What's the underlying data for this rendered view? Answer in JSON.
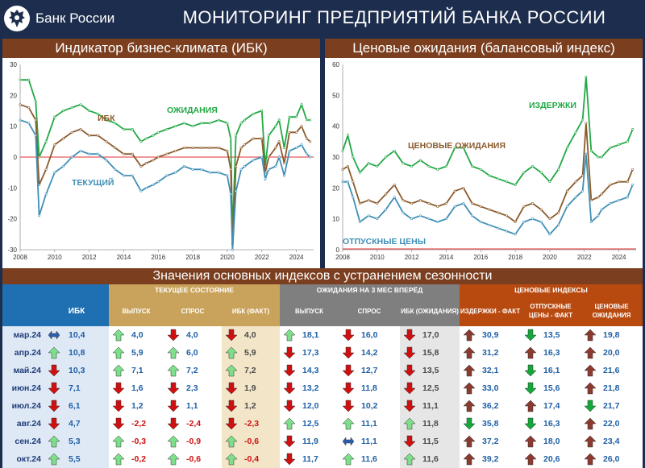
{
  "header": {
    "bank_name": "Банк России",
    "title": "МОНИТОРИНГ ПРЕДПРИЯТИЙ БАНКА РОССИИ"
  },
  "charts_titles": {
    "left": "Индикатор бизнес-климата (ИБК)",
    "right": "Ценовые ожидания (балансовый индекс)"
  },
  "chart_data": [
    {
      "type": "line",
      "title": "Индикатор бизнес-климата (ИБК)",
      "x_ticks": [
        "2008",
        "2010",
        "2012",
        "2014",
        "2016",
        "2018",
        "2020",
        "2022",
        "2024"
      ],
      "ylim": [
        -30,
        30
      ],
      "y_ticks": [
        "30",
        "20",
        "10",
        "0",
        "-10",
        "-20",
        "-30"
      ],
      "series": [
        {
          "name": "ОЖИДАНИЯ",
          "color": "#22a845",
          "x": [
            2008,
            2008.5,
            2008.9,
            2009.1,
            2009.5,
            2010,
            2010.5,
            2011,
            2011.5,
            2012,
            2012.5,
            2013,
            2013.5,
            2014,
            2014.5,
            2015,
            2015.3,
            2015.7,
            2016,
            2016.5,
            2017,
            2017.5,
            2018,
            2018.5,
            2019,
            2019.5,
            2020,
            2020.2,
            2020.3,
            2020.5,
            2020.8,
            2021,
            2021.5,
            2022,
            2022.2,
            2022.4,
            2022.8,
            2023,
            2023.3,
            2023.6,
            2024,
            2024.3,
            2024.6,
            2024.8
          ],
          "values": [
            25,
            25,
            18,
            0,
            5,
            13,
            15,
            16,
            17,
            15,
            14,
            12,
            11,
            9,
            9,
            5,
            6,
            7,
            8,
            9,
            10,
            11,
            10,
            11,
            11,
            12,
            11,
            6,
            -25,
            7,
            11,
            12,
            14,
            15,
            -3,
            7,
            10,
            12,
            3,
            13,
            13,
            17,
            12,
            12
          ]
        },
        {
          "name": "ИБК",
          "color": "#8b5a2b",
          "x": [
            2008,
            2008.5,
            2008.9,
            2009.1,
            2009.5,
            2010,
            2010.5,
            2011,
            2011.5,
            2012,
            2012.5,
            2013,
            2013.5,
            2014,
            2014.5,
            2015,
            2015.3,
            2015.7,
            2016,
            2016.5,
            2017,
            2017.5,
            2018,
            2018.5,
            2019,
            2019.5,
            2020,
            2020.2,
            2020.3,
            2020.5,
            2020.8,
            2021,
            2021.5,
            2022,
            2022.2,
            2022.4,
            2022.8,
            2023,
            2023.3,
            2023.6,
            2024,
            2024.3,
            2024.6,
            2024.8
          ],
          "values": [
            17,
            16,
            12,
            -9,
            -4,
            4,
            6,
            8,
            9,
            7,
            7,
            5,
            3,
            1,
            1,
            -3,
            -2,
            -1,
            0,
            1,
            2,
            3,
            3,
            3,
            3,
            3,
            2,
            -4,
            -28,
            -3,
            3,
            4,
            6,
            6,
            -5,
            0,
            3,
            5,
            -2,
            8,
            8,
            10,
            6,
            5
          ]
        },
        {
          "name": "ТЕКУЩИЙ",
          "color": "#3f8fb5",
          "x": [
            2008,
            2008.5,
            2008.9,
            2009.1,
            2009.5,
            2010,
            2010.5,
            2011,
            2011.5,
            2012,
            2012.5,
            2013,
            2013.5,
            2014,
            2014.5,
            2015,
            2015.3,
            2015.7,
            2016,
            2016.5,
            2017,
            2017.5,
            2018,
            2018.5,
            2019,
            2019.5,
            2020,
            2020.2,
            2020.3,
            2020.5,
            2020.8,
            2021,
            2021.5,
            2022,
            2022.2,
            2022.4,
            2022.8,
            2023,
            2023.3,
            2023.6,
            2024,
            2024.3,
            2024.6,
            2024.8
          ],
          "values": [
            12,
            11,
            7,
            -19,
            -12,
            -5,
            -3,
            0,
            2,
            1,
            1,
            -1,
            -4,
            -6,
            -6,
            -11,
            -10,
            -9,
            -8,
            -6,
            -5,
            -3,
            -4,
            -4,
            -5,
            -5,
            -6,
            -12,
            -30,
            -11,
            -4,
            -3,
            -1,
            0,
            -7,
            -4,
            -3,
            0,
            -6,
            2,
            3,
            4,
            1,
            0
          ]
        }
      ],
      "annotations": [
        "ОЖИДАНИЯ",
        "ИБК",
        "ТЕКУЩИЙ"
      ]
    },
    {
      "type": "line",
      "title": "Ценовые ожидания (балансовый индекс)",
      "x_ticks": [
        "2008",
        "2010",
        "2012",
        "2014",
        "2016",
        "2018",
        "2020",
        "2022",
        "2024"
      ],
      "ylim": [
        0,
        60
      ],
      "y_ticks": [
        "60",
        "50",
        "40",
        "30",
        "20",
        "10",
        "0"
      ],
      "series": [
        {
          "name": "ИЗДЕРЖКИ",
          "color": "#22a845",
          "x": [
            2008,
            2008.3,
            2008.6,
            2009,
            2009.5,
            2010,
            2010.5,
            2011,
            2011.5,
            2012,
            2012.5,
            2013,
            2013.5,
            2014,
            2014.5,
            2015,
            2015.5,
            2016,
            2016.5,
            2017,
            2017.5,
            2018,
            2018.5,
            2019,
            2019.5,
            2020,
            2020.5,
            2021,
            2021.5,
            2021.9,
            2022.1,
            2022.4,
            2022.8,
            2023,
            2023.5,
            2024,
            2024.5,
            2024.8
          ],
          "values": [
            32,
            37,
            30,
            25,
            28,
            27,
            30,
            32,
            28,
            27,
            29,
            27,
            26,
            27,
            33,
            33,
            27,
            26,
            24,
            23,
            22,
            21,
            25,
            27,
            25,
            22,
            26,
            33,
            38,
            42,
            56,
            32,
            30,
            30,
            33,
            34,
            35,
            39
          ]
        },
        {
          "name": "ЦЕНОВЫЕ ОЖИДАНИЯ",
          "color": "#8b5a2b",
          "x": [
            2008,
            2008.3,
            2008.6,
            2009,
            2009.5,
            2010,
            2010.5,
            2011,
            2011.5,
            2012,
            2012.5,
            2013,
            2013.5,
            2014,
            2014.5,
            2015,
            2015.5,
            2016,
            2016.5,
            2017,
            2017.5,
            2018,
            2018.5,
            2019,
            2019.5,
            2020,
            2020.5,
            2021,
            2021.5,
            2021.9,
            2022.1,
            2022.4,
            2022.8,
            2023,
            2023.5,
            2024,
            2024.5,
            2024.8
          ],
          "values": [
            26,
            27,
            22,
            15,
            16,
            15,
            18,
            21,
            16,
            15,
            16,
            15,
            14,
            15,
            19,
            20,
            15,
            14,
            13,
            12,
            11,
            9,
            14,
            15,
            13,
            10,
            12,
            19,
            22,
            24,
            41,
            16,
            17,
            18,
            21,
            22,
            22,
            26
          ]
        },
        {
          "name": "ОТПУСКНЫЕ ЦЕНЫ",
          "color": "#3f8fb5",
          "x": [
            2008,
            2008.3,
            2008.6,
            2009,
            2009.5,
            2010,
            2010.5,
            2011,
            2011.5,
            2012,
            2012.5,
            2013,
            2013.5,
            2014,
            2014.5,
            2015,
            2015.5,
            2016,
            2016.5,
            2017,
            2017.5,
            2018,
            2018.5,
            2019,
            2019.5,
            2020,
            2020.5,
            2021,
            2021.5,
            2021.9,
            2022.1,
            2022.4,
            2022.8,
            2023,
            2023.5,
            2024,
            2024.5,
            2024.8
          ],
          "values": [
            22,
            22,
            17,
            9,
            11,
            10,
            13,
            17,
            12,
            10,
            11,
            10,
            9,
            10,
            14,
            15,
            11,
            9,
            8,
            7,
            6,
            5,
            9,
            10,
            9,
            5,
            8,
            14,
            17,
            19,
            31,
            9,
            11,
            13,
            15,
            16,
            17,
            21
          ]
        }
      ],
      "annotations": [
        "ИЗДЕРЖКИ",
        "ЦЕНОВЫЕ ОЖИДАНИЯ",
        "ОТПУСКНЫЕ ЦЕНЫ"
      ]
    },
    {
      "type": "table",
      "title": "Значения основных индексов с устранением сезонности",
      "group_headers": [
        "ТЕКУЩЕЕ СОСТОЯНИЕ",
        "ОЖИДАНИЯ НА 3 МЕС ВПЕРЁД",
        "ЦЕНОВЫЕ ИНДЕКСЫ"
      ],
      "columns": [
        "ИБК",
        "ВЫПУСК",
        "СПРОС",
        "ИБК (ФАКТ)",
        "ВЫПУСК",
        "СПРОС",
        "ИБК (ОЖИДАНИЯ)",
        "ИЗДЕРЖКИ - ФАКТ",
        "ОТПУСКНЫЕ ЦЕНЫ - ФАКТ",
        "ЦЕНОВЫЕ ОЖИДАНИЯ"
      ],
      "rows": [
        {
          "label": "мар.24",
          "values": [
            "10,4",
            "4,0",
            "4,0",
            "4,0",
            "18,1",
            "16,0",
            "17,0",
            "30,9",
            "13,5",
            "19,8"
          ],
          "dirs": [
            "lr",
            "up",
            "down",
            "down",
            "up",
            "down",
            "down",
            "up",
            "down",
            "up"
          ]
        },
        {
          "label": "апр.24",
          "values": [
            "10,8",
            "5,9",
            "6,0",
            "5,9",
            "17,3",
            "14,2",
            "15,8",
            "31,2",
            "16,3",
            "20,0"
          ],
          "dirs": [
            "up",
            "up",
            "up",
            "up",
            "down",
            "down",
            "down",
            "up",
            "up",
            "up"
          ]
        },
        {
          "label": "май.24",
          "values": [
            "10,3",
            "7,1",
            "7,2",
            "7,2",
            "14,3",
            "12,7",
            "13,5",
            "32,1",
            "16,1",
            "21,6"
          ],
          "dirs": [
            "down",
            "up",
            "up",
            "up",
            "down",
            "down",
            "down",
            "up",
            "down",
            "up"
          ]
        },
        {
          "label": "июн.24",
          "values": [
            "7,1",
            "1,6",
            "2,3",
            "1,9",
            "13,2",
            "11,8",
            "12,5",
            "33,0",
            "15,6",
            "21,8"
          ],
          "dirs": [
            "down",
            "down",
            "down",
            "down",
            "down",
            "down",
            "down",
            "up",
            "down",
            "up"
          ]
        },
        {
          "label": "июл.24",
          "values": [
            "6,1",
            "1,2",
            "1,1",
            "1,2",
            "12,0",
            "10,2",
            "11,1",
            "36,2",
            "17,4",
            "21,7"
          ],
          "dirs": [
            "down",
            "down",
            "down",
            "down",
            "down",
            "down",
            "down",
            "up",
            "up",
            "down"
          ]
        },
        {
          "label": "авг.24",
          "values": [
            "4,7",
            "-2,2",
            "-2,4",
            "-2,3",
            "12,5",
            "11,1",
            "11,8",
            "35,8",
            "16,3",
            "22,0"
          ],
          "dirs": [
            "down",
            "down",
            "down",
            "down",
            "up",
            "up",
            "up",
            "down",
            "down",
            "up"
          ]
        },
        {
          "label": "сен.24",
          "values": [
            "5,3",
            "-0,3",
            "-0,9",
            "-0,6",
            "11,9",
            "11,1",
            "11,5",
            "37,2",
            "18,0",
            "23,4"
          ],
          "dirs": [
            "up",
            "up",
            "up",
            "up",
            "down",
            "lr",
            "down",
            "up",
            "up",
            "up"
          ]
        },
        {
          "label": "окт.24",
          "values": [
            "5,5",
            "-0,2",
            "-0,6",
            "-0,4",
            "11,7",
            "11,6",
            "11,6",
            "39,2",
            "20,6",
            "26,0"
          ],
          "dirs": [
            "up",
            "up",
            "up",
            "up",
            "down",
            "up",
            "up",
            "up",
            "up",
            "up"
          ]
        }
      ]
    }
  ],
  "colors": {
    "navy": "#1d2d4d",
    "brown": "#7b3f1f",
    "blue_header": "#1f6fb3",
    "tan_header": "#c9a35c",
    "gray_header": "#7f7f7f",
    "orange_header": "#b8490f",
    "arrow_up_light": "#7ddf8a",
    "arrow_up_dark": "#8b3a2f",
    "arrow_down_red": "#d01010",
    "arrow_down_green": "#14a83a",
    "arrow_lr": "#2a5fb0"
  }
}
